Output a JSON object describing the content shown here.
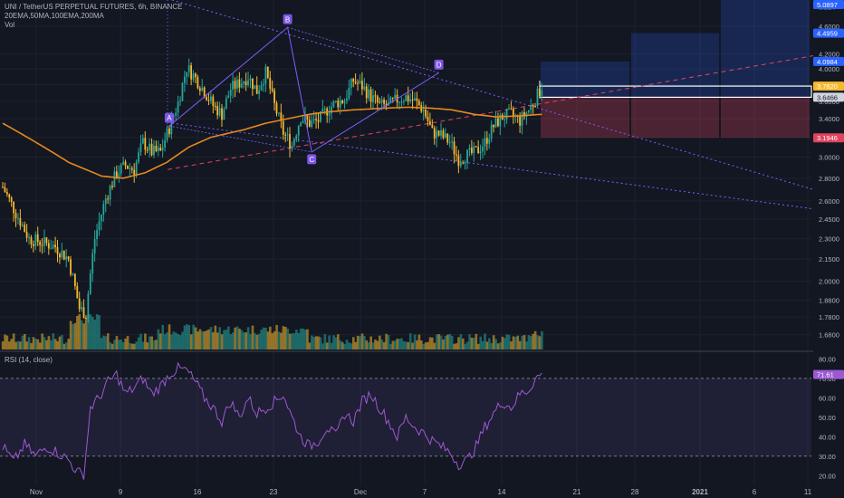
{
  "header": {
    "symbol_line": "UNI / TetherUS PERPETUAL FUTURES, 6h, BINANCE",
    "indicators_line": "20EMA,50MA,100EMA,200MA",
    "volume_label": "Vol",
    "rsi_label": "RSI (14, close)",
    "currency": "USDT"
  },
  "colors": {
    "background": "#131722",
    "bull": "#26a69a",
    "bear": "#f5b82e",
    "ma": "#e58a1f",
    "rsi": "#9c59d1",
    "pattern": "#7b61ff",
    "redline": "#e0435e",
    "grid": "#1e222d"
  },
  "chart_data": [
    {
      "type": "candlestick",
      "pane": "price",
      "title": "UNI / TetherUS PERPETUAL FUTURES, 6h, BINANCE",
      "x_tick_labels": [
        "Nov",
        "9",
        "16",
        "23",
        "Dec",
        "7",
        "14",
        "21",
        "28",
        "2021",
        "6",
        "11"
      ],
      "y_axis": {
        "scale": "log",
        "ticks": [
          1.68,
          1.78,
          1.88,
          2.0,
          2.15,
          2.3,
          2.45,
          2.6,
          2.8,
          3.0,
          3.2,
          3.4,
          3.6,
          3.8,
          4.0,
          4.2,
          4.6
        ],
        "range": [
          1.62,
          4.95
        ]
      },
      "price_labels": [
        {
          "text": "5.0897",
          "value": 5.0897,
          "color": "#2962ff"
        },
        {
          "text": "4.4959",
          "value": 4.4959,
          "color": "#2962ff"
        },
        {
          "text": "4.0984",
          "value": 4.0984,
          "color": "#2962ff"
        },
        {
          "text": "3.7820",
          "value": 3.782,
          "color": "#f5b82e"
        },
        {
          "text": "3.6466",
          "value": 3.6466,
          "color": "#d1d4dc"
        },
        {
          "text": "3.1946",
          "value": 3.1946,
          "color": "#e0435e"
        }
      ],
      "ohlc_anchors": [
        [
          0,
          2.72
        ],
        [
          6,
          2.5
        ],
        [
          12,
          2.3
        ],
        [
          18,
          2.27
        ],
        [
          24,
          2.24
        ],
        [
          30,
          2.15
        ],
        [
          35,
          1.83
        ],
        [
          38,
          1.8
        ],
        [
          42,
          2.3
        ],
        [
          47,
          2.62
        ],
        [
          52,
          2.85
        ],
        [
          56,
          2.92
        ],
        [
          60,
          2.88
        ],
        [
          64,
          3.15
        ],
        [
          68,
          3.05
        ],
        [
          72,
          3.05
        ],
        [
          76,
          3.3
        ],
        [
          80,
          3.58
        ],
        [
          84,
          4.02
        ],
        [
          88,
          3.88
        ],
        [
          92,
          3.72
        ],
        [
          96,
          3.55
        ],
        [
          100,
          3.45
        ],
        [
          104,
          3.75
        ],
        [
          108,
          3.82
        ],
        [
          112,
          3.9
        ],
        [
          116,
          3.72
        ],
        [
          120,
          3.95
        ],
        [
          124,
          3.55
        ],
        [
          128,
          3.25
        ],
        [
          132,
          3.12
        ],
        [
          136,
          3.42
        ],
        [
          140,
          3.35
        ],
        [
          144,
          3.38
        ],
        [
          148,
          3.5
        ],
        [
          152,
          3.58
        ],
        [
          156,
          3.62
        ],
        [
          160,
          3.85
        ],
        [
          164,
          3.78
        ],
        [
          168,
          3.65
        ],
        [
          172,
          3.55
        ],
        [
          176,
          3.55
        ],
        [
          180,
          3.62
        ],
        [
          184,
          3.65
        ],
        [
          188,
          3.6
        ],
        [
          192,
          3.5
        ],
        [
          196,
          3.25
        ],
        [
          200,
          3.22
        ],
        [
          204,
          3.15
        ],
        [
          208,
          2.98
        ],
        [
          212,
          3.02
        ],
        [
          216,
          3.05
        ],
        [
          220,
          3.15
        ],
        [
          224,
          3.32
        ],
        [
          228,
          3.42
        ],
        [
          232,
          3.45
        ],
        [
          236,
          3.38
        ],
        [
          240,
          3.5
        ],
        [
          243,
          3.62
        ],
        [
          246,
          3.78
        ]
      ],
      "ma_line": [
        [
          0,
          3.35
        ],
        [
          15,
          3.15
        ],
        [
          30,
          2.95
        ],
        [
          45,
          2.82
        ],
        [
          55,
          2.8
        ],
        [
          65,
          2.85
        ],
        [
          75,
          2.95
        ],
        [
          85,
          3.1
        ],
        [
          95,
          3.2
        ],
        [
          110,
          3.28
        ],
        [
          120,
          3.35
        ],
        [
          130,
          3.4
        ],
        [
          140,
          3.45
        ],
        [
          150,
          3.48
        ],
        [
          160,
          3.5
        ],
        [
          175,
          3.52
        ],
        [
          185,
          3.53
        ],
        [
          195,
          3.52
        ],
        [
          205,
          3.5
        ],
        [
          215,
          3.45
        ],
        [
          225,
          3.42
        ],
        [
          235,
          3.43
        ],
        [
          246,
          3.45
        ]
      ],
      "pattern_points": [
        {
          "label": "A",
          "bar": 76,
          "value": 3.32
        },
        {
          "label": "B",
          "bar": 130,
          "value": 4.58
        },
        {
          "label": "C",
          "bar": 141,
          "value": 3.05
        },
        {
          "label": "D",
          "bar": 199,
          "value": 3.95
        }
      ]
    },
    {
      "type": "bar",
      "pane": "volume",
      "title": "Vol"
    },
    {
      "type": "line",
      "pane": "rsi",
      "title": "RSI (14, close)",
      "y_axis": {
        "ticks": [
          20,
          30,
          40,
          50,
          60,
          70,
          80
        ],
        "range": [
          15,
          83
        ],
        "overbought": 70,
        "oversold": 30
      },
      "rsi_anchors": [
        [
          0,
          35
        ],
        [
          5,
          27
        ],
        [
          10,
          36
        ],
        [
          15,
          30
        ],
        [
          20,
          35
        ],
        [
          25,
          32
        ],
        [
          30,
          28
        ],
        [
          34,
          22
        ],
        [
          37,
          20
        ],
        [
          40,
          55
        ],
        [
          44,
          60
        ],
        [
          48,
          68
        ],
        [
          52,
          72
        ],
        [
          56,
          62
        ],
        [
          60,
          65
        ],
        [
          64,
          70
        ],
        [
          68,
          62
        ],
        [
          72,
          66
        ],
        [
          76,
          72
        ],
        [
          80,
          75
        ],
        [
          84,
          74
        ],
        [
          88,
          68
        ],
        [
          92,
          60
        ],
        [
          96,
          55
        ],
        [
          100,
          48
        ],
        [
          104,
          58
        ],
        [
          108,
          50
        ],
        [
          112,
          60
        ],
        [
          116,
          52
        ],
        [
          120,
          55
        ],
        [
          124,
          58
        ],
        [
          128,
          62
        ],
        [
          132,
          50
        ],
        [
          136,
          40
        ],
        [
          140,
          35
        ],
        [
          144,
          38
        ],
        [
          148,
          45
        ],
        [
          152,
          40
        ],
        [
          156,
          52
        ],
        [
          160,
          48
        ],
        [
          164,
          58
        ],
        [
          168,
          62
        ],
        [
          172,
          55
        ],
        [
          176,
          48
        ],
        [
          180,
          40
        ],
        [
          184,
          50
        ],
        [
          188,
          45
        ],
        [
          192,
          42
        ],
        [
          196,
          38
        ],
        [
          200,
          35
        ],
        [
          204,
          32
        ],
        [
          208,
          26
        ],
        [
          212,
          28
        ],
        [
          216,
          35
        ],
        [
          220,
          45
        ],
        [
          224,
          52
        ],
        [
          228,
          58
        ],
        [
          232,
          55
        ],
        [
          236,
          62
        ],
        [
          240,
          64
        ],
        [
          243,
          70
        ],
        [
          246,
          72
        ]
      ]
    }
  ]
}
